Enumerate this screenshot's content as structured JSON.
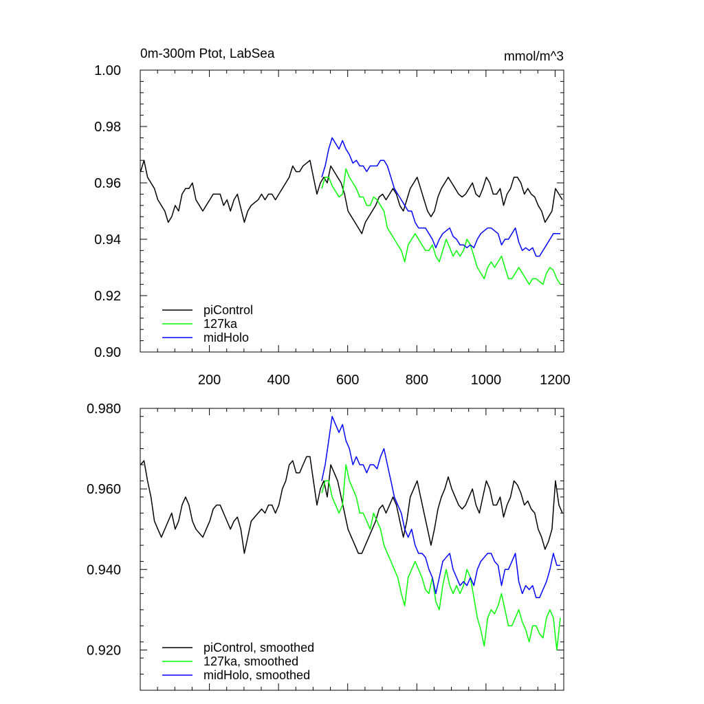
{
  "chart_data": [
    {
      "type": "line",
      "title_left": "0m-300m Ptot, LabSea",
      "title_right": "mmol/m^3",
      "xlabel": "",
      "ylabel": "",
      "xlim": [
        0,
        1225
      ],
      "ylim": [
        0.9,
        1.0
      ],
      "xticks": [
        200,
        400,
        600,
        800,
        1000,
        1200
      ],
      "xtick_labels": [
        "200",
        "400",
        "600",
        "800",
        "1000",
        "1200"
      ],
      "yticks": [
        0.9,
        0.92,
        0.94,
        0.96,
        0.98,
        1.0
      ],
      "ytick_labels": [
        "0.90",
        "0.92",
        "0.94",
        "0.96",
        "0.98",
        "1.00"
      ],
      "legend_position": "bottom-left",
      "series": [
        {
          "name": "piControl",
          "color": "#000000",
          "x_start": 1,
          "x_step": 10,
          "values": [
            0.964,
            0.968,
            0.962,
            0.96,
            0.958,
            0.954,
            0.952,
            0.95,
            0.946,
            0.948,
            0.952,
            0.95,
            0.956,
            0.958,
            0.958,
            0.96,
            0.954,
            0.952,
            0.95,
            0.952,
            0.954,
            0.956,
            0.956,
            0.956,
            0.952,
            0.954,
            0.95,
            0.954,
            0.956,
            0.951,
            0.946,
            0.95,
            0.952,
            0.953,
            0.954,
            0.956,
            0.954,
            0.956,
            0.956,
            0.954,
            0.956,
            0.958,
            0.96,
            0.962,
            0.966,
            0.964,
            0.964,
            0.966,
            0.967,
            0.968,
            0.962,
            0.956,
            0.96,
            0.962,
            0.96,
            0.966,
            0.964,
            0.962,
            0.96,
            0.956,
            0.95,
            0.948,
            0.946,
            0.944,
            0.942,
            0.946,
            0.948,
            0.95,
            0.952,
            0.955,
            0.956,
            0.954,
            0.956,
            0.958,
            0.956,
            0.952,
            0.95,
            0.954,
            0.958,
            0.96,
            0.962,
            0.958,
            0.954,
            0.95,
            0.948,
            0.95,
            0.955,
            0.958,
            0.96,
            0.962,
            0.96,
            0.958,
            0.956,
            0.955,
            0.956,
            0.958,
            0.96,
            0.956,
            0.955,
            0.958,
            0.962,
            0.96,
            0.956,
            0.956,
            0.958,
            0.952,
            0.956,
            0.958,
            0.962,
            0.962,
            0.96,
            0.956,
            0.958,
            0.956,
            0.955,
            0.952,
            0.95,
            0.946,
            0.948,
            0.95,
            0.958,
            0.956,
            0.954
          ]
        },
        {
          "name": "127ka",
          "color": "#00ff00",
          "x_start": 525,
          "x_step": 10,
          "values": [
            0.958,
            0.962,
            0.962,
            0.959,
            0.957,
            0.955,
            0.956,
            0.965,
            0.962,
            0.96,
            0.958,
            0.955,
            0.955,
            0.952,
            0.952,
            0.955,
            0.954,
            0.952,
            0.95,
            0.944,
            0.942,
            0.94,
            0.938,
            0.936,
            0.932,
            0.938,
            0.94,
            0.942,
            0.94,
            0.938,
            0.936,
            0.936,
            0.938,
            0.934,
            0.932,
            0.936,
            0.94,
            0.937,
            0.934,
            0.936,
            0.934,
            0.936,
            0.94,
            0.938,
            0.934,
            0.93,
            0.928,
            0.926,
            0.93,
            0.932,
            0.93,
            0.932,
            0.934,
            0.93,
            0.926,
            0.926,
            0.928,
            0.93,
            0.928,
            0.926,
            0.924,
            0.926,
            0.926,
            0.925,
            0.924,
            0.928,
            0.93,
            0.929,
            0.926,
            0.924
          ]
        },
        {
          "name": "midHolo",
          "color": "#0000ff",
          "x_start": 525,
          "x_step": 10,
          "values": [
            0.962,
            0.966,
            0.972,
            0.976,
            0.974,
            0.972,
            0.975,
            0.972,
            0.97,
            0.967,
            0.968,
            0.966,
            0.966,
            0.964,
            0.966,
            0.966,
            0.966,
            0.968,
            0.968,
            0.966,
            0.962,
            0.958,
            0.956,
            0.954,
            0.952,
            0.95,
            0.95,
            0.946,
            0.944,
            0.944,
            0.944,
            0.942,
            0.94,
            0.937,
            0.94,
            0.942,
            0.943,
            0.944,
            0.941,
            0.94,
            0.938,
            0.938,
            0.937,
            0.938,
            0.937,
            0.94,
            0.942,
            0.943,
            0.944,
            0.944,
            0.943,
            0.942,
            0.938,
            0.94,
            0.94,
            0.942,
            0.944,
            0.939,
            0.936,
            0.937,
            0.936,
            0.937,
            0.934,
            0.934,
            0.936,
            0.938,
            0.94,
            0.942,
            0.942,
            0.942
          ]
        }
      ]
    },
    {
      "type": "line",
      "title": "",
      "xlabel": "",
      "ylabel": "",
      "xlim": [
        0,
        1225
      ],
      "ylim": [
        0.91,
        0.98
      ],
      "xticks": [
        200,
        400,
        600,
        800,
        1000,
        1200
      ],
      "yticks": [
        0.92,
        0.94,
        0.96,
        0.98
      ],
      "ytick_labels": [
        "0.920",
        "0.940",
        "0.960",
        "0.980"
      ],
      "legend_position": "bottom-left",
      "series": [
        {
          "name": "piControl, smoothed",
          "color": "#000000",
          "x_start": 1,
          "x_step": 10,
          "values": [
            0.966,
            0.967,
            0.962,
            0.958,
            0.952,
            0.95,
            0.948,
            0.95,
            0.952,
            0.954,
            0.95,
            0.952,
            0.956,
            0.958,
            0.956,
            0.952,
            0.95,
            0.949,
            0.948,
            0.95,
            0.952,
            0.955,
            0.956,
            0.956,
            0.954,
            0.952,
            0.95,
            0.952,
            0.953,
            0.95,
            0.944,
            0.948,
            0.952,
            0.953,
            0.954,
            0.955,
            0.954,
            0.956,
            0.956,
            0.954,
            0.956,
            0.96,
            0.962,
            0.966,
            0.967,
            0.964,
            0.964,
            0.966,
            0.968,
            0.968,
            0.962,
            0.956,
            0.96,
            0.962,
            0.958,
            0.966,
            0.964,
            0.962,
            0.958,
            0.954,
            0.95,
            0.948,
            0.946,
            0.944,
            0.944,
            0.946,
            0.948,
            0.95,
            0.952,
            0.955,
            0.956,
            0.954,
            0.956,
            0.958,
            0.956,
            0.952,
            0.948,
            0.952,
            0.958,
            0.96,
            0.962,
            0.958,
            0.954,
            0.95,
            0.946,
            0.95,
            0.955,
            0.958,
            0.96,
            0.963,
            0.96,
            0.958,
            0.956,
            0.955,
            0.956,
            0.958,
            0.96,
            0.956,
            0.954,
            0.958,
            0.962,
            0.96,
            0.956,
            0.956,
            0.958,
            0.953,
            0.956,
            0.958,
            0.962,
            0.961,
            0.959,
            0.956,
            0.957,
            0.955,
            0.954,
            0.95,
            0.948,
            0.945,
            0.947,
            0.95,
            0.962,
            0.956,
            0.954
          ]
        },
        {
          "name": "127ka, smoothed",
          "color": "#00ff00",
          "x_start": 525,
          "x_step": 10,
          "values": [
            0.959,
            0.962,
            0.962,
            0.958,
            0.956,
            0.954,
            0.956,
            0.966,
            0.962,
            0.96,
            0.958,
            0.954,
            0.954,
            0.952,
            0.95,
            0.954,
            0.952,
            0.95,
            0.946,
            0.944,
            0.942,
            0.94,
            0.938,
            0.934,
            0.931,
            0.938,
            0.94,
            0.942,
            0.94,
            0.938,
            0.935,
            0.934,
            0.938,
            0.932,
            0.93,
            0.936,
            0.94,
            0.936,
            0.934,
            0.936,
            0.934,
            0.936,
            0.94,
            0.938,
            0.933,
            0.928,
            0.925,
            0.921,
            0.928,
            0.93,
            0.929,
            0.931,
            0.934,
            0.93,
            0.926,
            0.926,
            0.928,
            0.93,
            0.927,
            0.925,
            0.922,
            0.926,
            0.926,
            0.924,
            0.923,
            0.928,
            0.93,
            0.928,
            0.92,
            0.928
          ]
        },
        {
          "name": "midHolo, smoothed",
          "color": "#0000ff",
          "x_start": 525,
          "x_step": 10,
          "values": [
            0.962,
            0.966,
            0.972,
            0.978,
            0.976,
            0.974,
            0.976,
            0.972,
            0.97,
            0.966,
            0.968,
            0.966,
            0.966,
            0.964,
            0.966,
            0.966,
            0.965,
            0.968,
            0.97,
            0.966,
            0.962,
            0.958,
            0.956,
            0.954,
            0.95,
            0.948,
            0.95,
            0.946,
            0.944,
            0.944,
            0.943,
            0.94,
            0.938,
            0.934,
            0.938,
            0.942,
            0.943,
            0.944,
            0.94,
            0.938,
            0.936,
            0.937,
            0.936,
            0.938,
            0.936,
            0.94,
            0.942,
            0.943,
            0.944,
            0.944,
            0.942,
            0.941,
            0.936,
            0.94,
            0.94,
            0.942,
            0.944,
            0.937,
            0.934,
            0.936,
            0.935,
            0.936,
            0.933,
            0.933,
            0.935,
            0.937,
            0.94,
            0.944,
            0.941,
            0.941
          ]
        }
      ]
    }
  ]
}
